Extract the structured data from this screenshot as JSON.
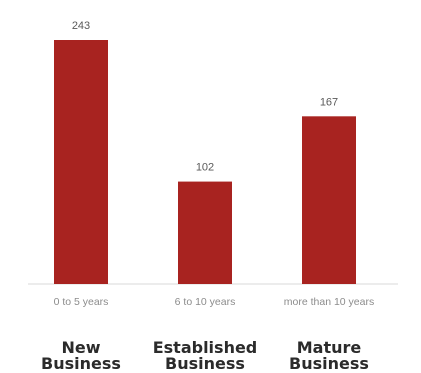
{
  "chart_data": {
    "type": "bar",
    "categories": [
      "0 to 5 years",
      "6 to 10 years",
      "more than 10 years"
    ],
    "values": [
      243,
      102,
      167
    ],
    "ylim": [
      0,
      243
    ],
    "grid": false,
    "colors": {
      "bar": "#a82320",
      "axis": "#d9d9d9"
    },
    "groups": [
      {
        "line1": "New",
        "line2": "Business"
      },
      {
        "line1": "Established",
        "line2": "Business"
      },
      {
        "line1": "Mature",
        "line2": "Business"
      }
    ]
  }
}
